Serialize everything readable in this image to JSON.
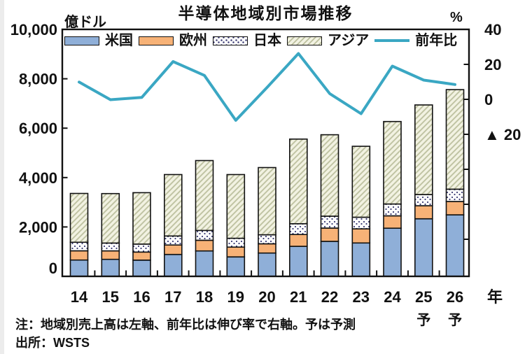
{
  "title": "半導体地域別市場推移",
  "left_axis": {
    "unit": "億ドル",
    "ticks": [
      {
        "label": "0",
        "value": 0
      },
      {
        "label": "2,000",
        "value": 2000
      },
      {
        "label": "4,000",
        "value": 4000
      },
      {
        "label": "6,000",
        "value": 6000
      },
      {
        "label": "8,000",
        "value": 8000
      },
      {
        "label": "10,000",
        "value": 10000
      }
    ]
  },
  "right_axis": {
    "unit": "%",
    "ticks": [
      {
        "label": "40",
        "value": 40
      },
      {
        "label": "20",
        "value": 20
      },
      {
        "label": "0",
        "value": 0
      },
      {
        "label": "▲ 20",
        "value": -20
      }
    ],
    "minor_tick_values": [
      -40,
      -60,
      -80
    ]
  },
  "x_axis": {
    "unit": "年",
    "labels": [
      "14",
      "15",
      "16",
      "17",
      "18",
      "19",
      "20",
      "21",
      "22",
      "23",
      "24",
      "25",
      "26"
    ],
    "forecast_label": "予",
    "forecast_indices": [
      11,
      12
    ]
  },
  "legend": {
    "items": [
      {
        "label": "米国",
        "swatch": "us"
      },
      {
        "label": "欧州",
        "swatch": "eu"
      },
      {
        "label": "日本",
        "swatch": "jp"
      },
      {
        "label": "アジア",
        "swatch": "asia"
      },
      {
        "label": "前年比",
        "swatch": "line"
      }
    ]
  },
  "notes": {
    "note": "注：地域別売上高は左軸、前年比は伸び率で右軸。予は予測",
    "source": "出所：WSTS"
  },
  "colors": {
    "us": "#8fafd8",
    "europe": "#f7b277",
    "japan_bg": "#ffffff",
    "japan_dot": "#3c3c74",
    "asia_bg": "#f2f2e2",
    "asia_hatch": "#bcc09e",
    "line": "#3aa7c3",
    "frame": "#111111"
  },
  "chart_data": {
    "type": "combo: stacked bar (left axis) + line (right axis)",
    "categories": [
      "14",
      "15",
      "16",
      "17",
      "18",
      "19",
      "20",
      "21",
      "22",
      "23",
      "24",
      "25",
      "26"
    ],
    "series": [
      {
        "name": "米国",
        "key": "us",
        "values": [
          659,
          687,
          655,
          885,
          1030,
          785,
          943,
          1215,
          1417,
          1353,
          1950,
          2330,
          2490
        ]
      },
      {
        "name": "欧州",
        "key": "europe",
        "values": [
          375,
          343,
          327,
          383,
          430,
          398,
          375,
          478,
          538,
          571,
          500,
          530,
          540
        ]
      },
      {
        "name": "日本",
        "key": "japan",
        "values": [
          348,
          318,
          324,
          366,
          400,
          360,
          365,
          437,
          481,
          470,
          480,
          450,
          500
        ]
      },
      {
        "name": "アジア",
        "key": "asia",
        "values": [
          1976,
          2004,
          2083,
          2488,
          2829,
          2580,
          2721,
          3429,
          3298,
          2873,
          3340,
          3630,
          4030
        ]
      }
    ],
    "line_series": {
      "name": "前年比",
      "axis": "right",
      "unit": "%",
      "values": [
        9.9,
        -0.2,
        1.1,
        21.6,
        13.7,
        -12.0,
        6.8,
        26.2,
        3.3,
        -8.2,
        19.0,
        11.0,
        8.5
      ]
    },
    "left_ylim": [
      0,
      10000
    ],
    "right_ylim": [
      -100,
      40
    ],
    "grid": false,
    "legend_position": "top-inside",
    "xlabel_unit": "年",
    "ylabel_left": "億ドル",
    "ylabel_right": "%"
  }
}
